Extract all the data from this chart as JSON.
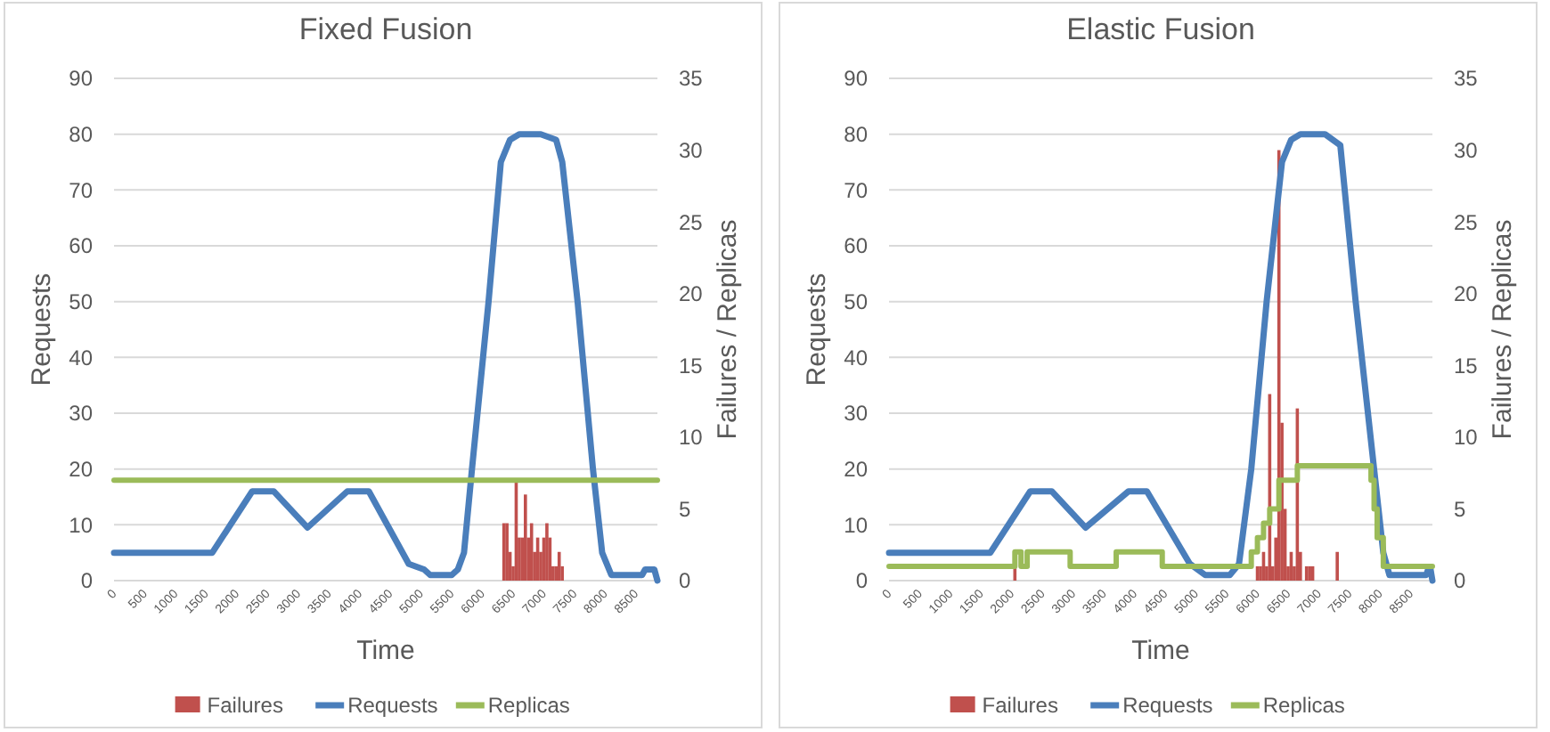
{
  "chart_data": [
    {
      "type": "line",
      "title": "Fixed Fusion",
      "xlabel": "Time",
      "ylabel": "Requests",
      "y2label": "Failures / Replicas",
      "xlim": [
        0,
        8850
      ],
      "xticks": [
        0,
        500,
        1000,
        1500,
        2000,
        2500,
        3000,
        3500,
        4000,
        4500,
        5000,
        5500,
        6000,
        6500,
        7000,
        7500,
        8000,
        8500
      ],
      "ylim": [
        0,
        90
      ],
      "yticks": [
        0,
        10,
        20,
        30,
        40,
        50,
        60,
        70,
        80,
        90
      ],
      "y2lim": [
        0,
        35
      ],
      "y2ticks": [
        0,
        5,
        10,
        15,
        20,
        25,
        30,
        35
      ],
      "grid": "y",
      "legend": "bottom",
      "series": [
        {
          "name": "Failures",
          "type": "bar",
          "axis": "y2",
          "color": "#c0504d",
          "x": [
            6350,
            6400,
            6450,
            6500,
            6550,
            6600,
            6650,
            6700,
            6750,
            6800,
            6850,
            6900,
            6950,
            7000,
            7050,
            7100,
            7150,
            7200,
            7250,
            7300
          ],
          "values": [
            4,
            4,
            2,
            1,
            7,
            3,
            3,
            6,
            3,
            4,
            2,
            3,
            2,
            3,
            4,
            3,
            1,
            1,
            2,
            1
          ]
        },
        {
          "name": "Requests",
          "color": "#4a7ebb",
          "x": [
            0,
            1600,
            2250,
            2600,
            3150,
            3800,
            4150,
            4800,
            5050,
            5150,
            5500,
            5600,
            5700,
            5830,
            6100,
            6300,
            6450,
            6600,
            6950,
            7200,
            7300,
            7550,
            7800,
            7950,
            8100,
            8600,
            8650,
            8800,
            8850
          ],
          "values": [
            5,
            5,
            16,
            16,
            9.5,
            16,
            16,
            3,
            2,
            1,
            1,
            2,
            5,
            20,
            50,
            75,
            79,
            80,
            80,
            79,
            75,
            50,
            20,
            5,
            1,
            1,
            2,
            2,
            0
          ]
        },
        {
          "name": "Replicas",
          "axis": "y2",
          "color": "#9bbb59",
          "x": [
            0,
            8850
          ],
          "values": [
            7,
            7
          ]
        }
      ]
    },
    {
      "type": "line",
      "title": "Elastic Fusion",
      "xlabel": "Time",
      "ylabel": "Requests",
      "y2label": "Failures / Replicas",
      "xlim": [
        0,
        8850
      ],
      "xticks": [
        0,
        500,
        1000,
        1500,
        2000,
        2500,
        3000,
        3500,
        4000,
        4500,
        5000,
        5500,
        6000,
        6500,
        7000,
        7500,
        8000,
        8500
      ],
      "ylim": [
        0,
        90
      ],
      "yticks": [
        0,
        10,
        20,
        30,
        40,
        50,
        60,
        70,
        80,
        90
      ],
      "y2lim": [
        0,
        35
      ],
      "y2ticks": [
        0,
        5,
        10,
        15,
        20,
        25,
        30,
        35
      ],
      "grid": "y",
      "legend": "bottom",
      "series": [
        {
          "name": "Failures",
          "type": "bar",
          "axis": "y2",
          "color": "#c0504d",
          "x": [
            2050,
            6000,
            6050,
            6100,
            6150,
            6200,
            6250,
            6300,
            6350,
            6400,
            6450,
            6500,
            6550,
            6600,
            6650,
            6700,
            6800,
            6850,
            6900,
            7300
          ],
          "values": [
            1,
            1,
            1,
            2,
            1,
            13,
            1,
            3,
            30,
            11,
            5,
            1,
            2,
            1,
            12,
            2,
            1,
            1,
            1,
            2
          ]
        },
        {
          "name": "Requests",
          "color": "#4a7ebb",
          "x": [
            0,
            1650,
            2300,
            2650,
            3200,
            3900,
            4200,
            4900,
            5150,
            5550,
            5700,
            5900,
            6150,
            6400,
            6550,
            6700,
            7100,
            7350,
            7600,
            7900,
            8050,
            8150,
            8750,
            8780,
            8820,
            8850
          ],
          "values": [
            5,
            5,
            16,
            16,
            9.5,
            16,
            16,
            3,
            1,
            1,
            3,
            20,
            50,
            75,
            79,
            80,
            80,
            78,
            50,
            20,
            5,
            1,
            1,
            2,
            2,
            0
          ]
        },
        {
          "name": "Replicas",
          "type": "step",
          "axis": "y2",
          "color": "#9bbb59",
          "x": [
            0,
            2050,
            2150,
            2250,
            2950,
            3700,
            4450,
            5900,
            6000,
            6100,
            6200,
            6350,
            6650,
            7850,
            7900,
            7950,
            8050,
            8850
          ],
          "values": [
            1,
            2,
            1,
            2,
            1,
            2,
            1,
            2,
            3,
            4,
            5,
            7,
            8,
            7,
            5,
            3,
            1,
            1
          ]
        }
      ]
    }
  ]
}
